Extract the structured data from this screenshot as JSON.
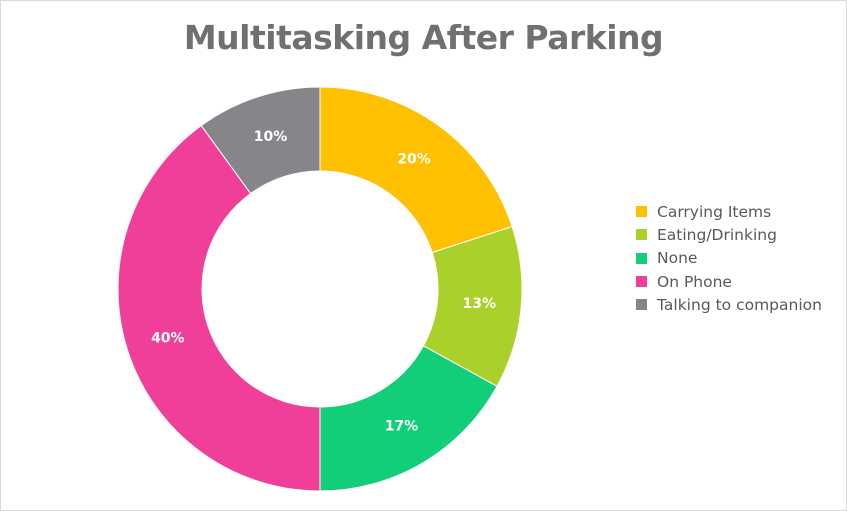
{
  "chart_data": {
    "type": "pie",
    "variant": "donut",
    "title": "Multitasking After Parking",
    "categories": [
      "Carrying Items",
      "Eating/Drinking",
      "None",
      "On Phone",
      "Talking to companion"
    ],
    "values": [
      20,
      13,
      17,
      40,
      10
    ],
    "value_labels": [
      "20%",
      "13%",
      "17%",
      "40%",
      "10%"
    ],
    "colors": [
      "#FFC000",
      "#A9D12A",
      "#12CE78",
      "#F03F98",
      "#86858A"
    ],
    "legend_position": "right"
  }
}
